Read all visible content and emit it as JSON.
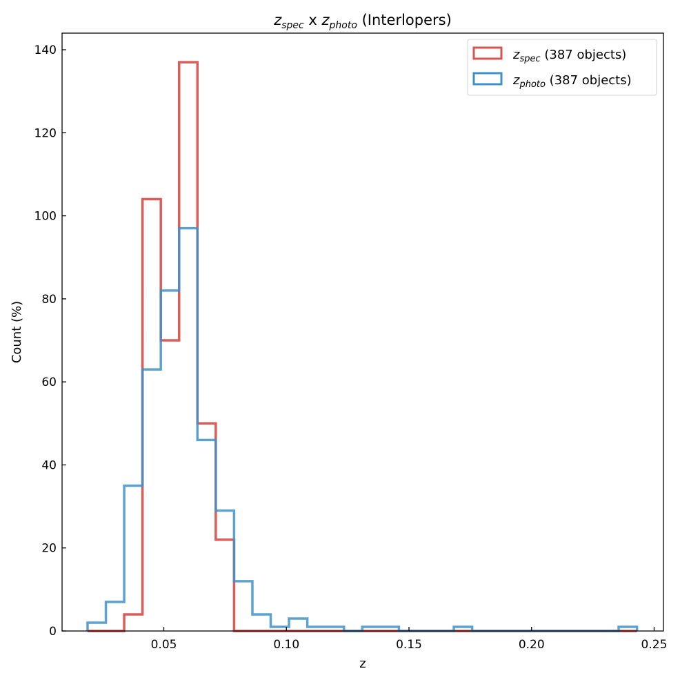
{
  "chart_data": {
    "type": "histogram",
    "title": {
      "z1": "z",
      "s1": "spec",
      "mid": " x ",
      "z2": "z",
      "s2": "photo",
      "tail": " (Interlopers)"
    },
    "xlabel": "z",
    "ylabel": "Count (%)",
    "xlim": [
      0.0085,
      0.2538
    ],
    "ylim": [
      0,
      144
    ],
    "xticks": [
      0.05,
      0.1,
      0.15,
      0.2,
      0.25
    ],
    "xtick_labels": [
      "0.05",
      "0.10",
      "0.15",
      "0.20",
      "0.25"
    ],
    "yticks": [
      0,
      20,
      40,
      60,
      80,
      100,
      120,
      140
    ],
    "ytick_labels": [
      "0",
      "20",
      "40",
      "60",
      "80",
      "100",
      "120",
      "140"
    ],
    "bin_start": 0.0189,
    "bin_width": 0.00747,
    "legend_position": "top-right",
    "series": [
      {
        "name": "z_spec (387 objects)",
        "label_var": "z",
        "label_sub": "spec",
        "label_rest": " (387 objects)",
        "color": "#d9534f",
        "counts": [
          0,
          0,
          4,
          104,
          70,
          137,
          50,
          22,
          0,
          0,
          0,
          0,
          0,
          0,
          0,
          0,
          0,
          0,
          0,
          0,
          0,
          0,
          0,
          0,
          0,
          0,
          0,
          0,
          0,
          0
        ]
      },
      {
        "name": "z_photo (387 objects)",
        "label_var": "z",
        "label_sub": "photo",
        "label_rest": " (387 objects)",
        "color": "#4191c7",
        "counts": [
          2,
          7,
          35,
          63,
          82,
          97,
          46,
          29,
          12,
          4,
          1,
          3,
          1,
          1,
          0,
          1,
          1,
          0,
          0,
          0,
          1,
          0,
          0,
          0,
          0,
          0,
          0,
          0,
          0,
          1
        ]
      }
    ]
  }
}
